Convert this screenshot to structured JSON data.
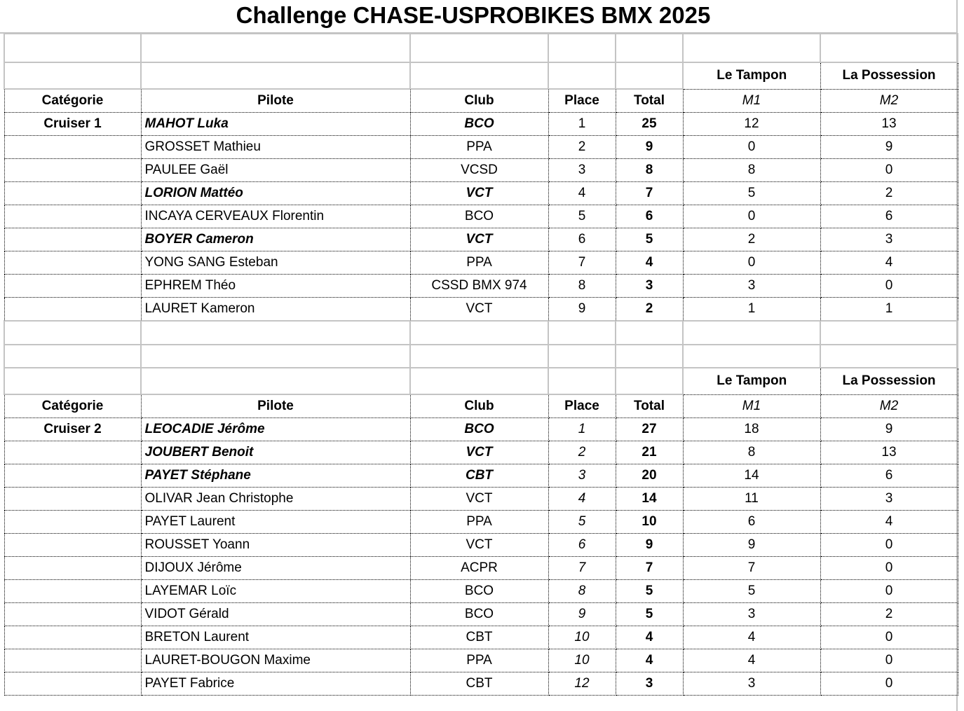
{
  "title": "Challenge CHASE-USPROBIKES BMX 2025",
  "headers": {
    "categorie": "Catégorie",
    "pilote": "Pilote",
    "club": "Club",
    "place": "Place",
    "total": "Total",
    "m1": "M1",
    "m2": "M2",
    "venue1": "Le Tampon",
    "venue2": "La Possession"
  },
  "sections": [
    {
      "category": "Cruiser 1",
      "place_italic": false,
      "rows": [
        {
          "pilot": "MAHOT Luka",
          "club": "BCO",
          "place": "1",
          "total": "25",
          "m1": "12",
          "m2": "13",
          "highlight": true
        },
        {
          "pilot": "GROSSET Mathieu",
          "club": "PPA",
          "place": "2",
          "total": "9",
          "m1": "0",
          "m2": "9",
          "highlight": false
        },
        {
          "pilot": "PAULEE Gaël",
          "club": "VCSD",
          "place": "3",
          "total": "8",
          "m1": "8",
          "m2": "0",
          "highlight": false
        },
        {
          "pilot": "LORION Mattéo",
          "club": "VCT",
          "place": "4",
          "total": "7",
          "m1": "5",
          "m2": "2",
          "highlight": true
        },
        {
          "pilot": "INCAYA CERVEAUX Florentin",
          "club": "BCO",
          "place": "5",
          "total": "6",
          "m1": "0",
          "m2": "6",
          "highlight": false
        },
        {
          "pilot": "BOYER Cameron",
          "club": "VCT",
          "place": "6",
          "total": "5",
          "m1": "2",
          "m2": "3",
          "highlight": true
        },
        {
          "pilot": "YONG SANG Esteban",
          "club": "PPA",
          "place": "7",
          "total": "4",
          "m1": "0",
          "m2": "4",
          "highlight": false
        },
        {
          "pilot": "EPHREM Théo",
          "club": "CSSD BMX 974",
          "place": "8",
          "total": "3",
          "m1": "3",
          "m2": "0",
          "highlight": false
        },
        {
          "pilot": "LAURET Kameron",
          "club": "VCT",
          "place": "9",
          "total": "2",
          "m1": "1",
          "m2": "1",
          "highlight": false
        }
      ]
    },
    {
      "category": "Cruiser 2",
      "place_italic": true,
      "rows": [
        {
          "pilot": "LEOCADIE Jérôme",
          "club": "BCO",
          "place": "1",
          "total": "27",
          "m1": "18",
          "m2": "9",
          "highlight": true
        },
        {
          "pilot": "JOUBERT Benoit",
          "club": "VCT",
          "place": "2",
          "total": "21",
          "m1": "8",
          "m2": "13",
          "highlight": true
        },
        {
          "pilot": "PAYET Stéphane",
          "club": "CBT",
          "place": "3",
          "total": "20",
          "m1": "14",
          "m2": "6",
          "highlight": true
        },
        {
          "pilot": "OLIVAR Jean Christophe",
          "club": "VCT",
          "place": "4",
          "total": "14",
          "m1": "11",
          "m2": "3",
          "highlight": false
        },
        {
          "pilot": "PAYET Laurent",
          "club": "PPA",
          "place": "5",
          "total": "10",
          "m1": "6",
          "m2": "4",
          "highlight": false
        },
        {
          "pilot": "ROUSSET Yoann",
          "club": "VCT",
          "place": "6",
          "total": "9",
          "m1": "9",
          "m2": "0",
          "highlight": false
        },
        {
          "pilot": "DIJOUX Jérôme",
          "club": "ACPR",
          "place": "7",
          "total": "7",
          "m1": "7",
          "m2": "0",
          "highlight": false
        },
        {
          "pilot": "LAYEMAR Loïc",
          "club": "BCO",
          "place": "8",
          "total": "5",
          "m1": "5",
          "m2": "0",
          "highlight": false
        },
        {
          "pilot": "VIDOT Gérald",
          "club": "BCO",
          "place": "9",
          "total": "5",
          "m1": "3",
          "m2": "2",
          "highlight": false
        },
        {
          "pilot": "BRETON Laurent",
          "club": "CBT",
          "place": "10",
          "total": "4",
          "m1": "4",
          "m2": "0",
          "highlight": false
        },
        {
          "pilot": "LAURET-BOUGON Maxime",
          "club": "PPA",
          "place": "10",
          "total": "4",
          "m1": "4",
          "m2": "0",
          "highlight": false
        },
        {
          "pilot": "PAYET Fabrice",
          "club": "CBT",
          "place": "12",
          "total": "3",
          "m1": "3",
          "m2": "0",
          "highlight": false
        }
      ]
    }
  ]
}
